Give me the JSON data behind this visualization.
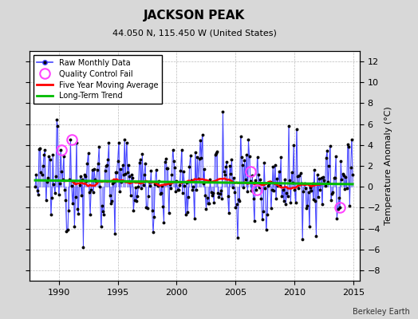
{
  "title": "JACKSON PEAK",
  "subtitle": "44.050 N, 115.450 W (United States)",
  "ylabel": "Temperature Anomaly (°C)",
  "credit": "Berkeley Earth",
  "xlim": [
    1987.5,
    2015.5
  ],
  "ylim": [
    -9,
    13
  ],
  "yticks": [
    -8,
    -6,
    -4,
    -2,
    0,
    2,
    4,
    6,
    8,
    10,
    12
  ],
  "xticks": [
    1990,
    1995,
    2000,
    2005,
    2010,
    2015
  ],
  "background_color": "#d8d8d8",
  "plot_bg_color": "#ffffff",
  "raw_line_color": "#4444ff",
  "raw_marker_color": "#000000",
  "moving_avg_color": "#ff0000",
  "trend_color": "#00bb00",
  "qc_fail_color": "#ff44ff",
  "seed": 12345
}
